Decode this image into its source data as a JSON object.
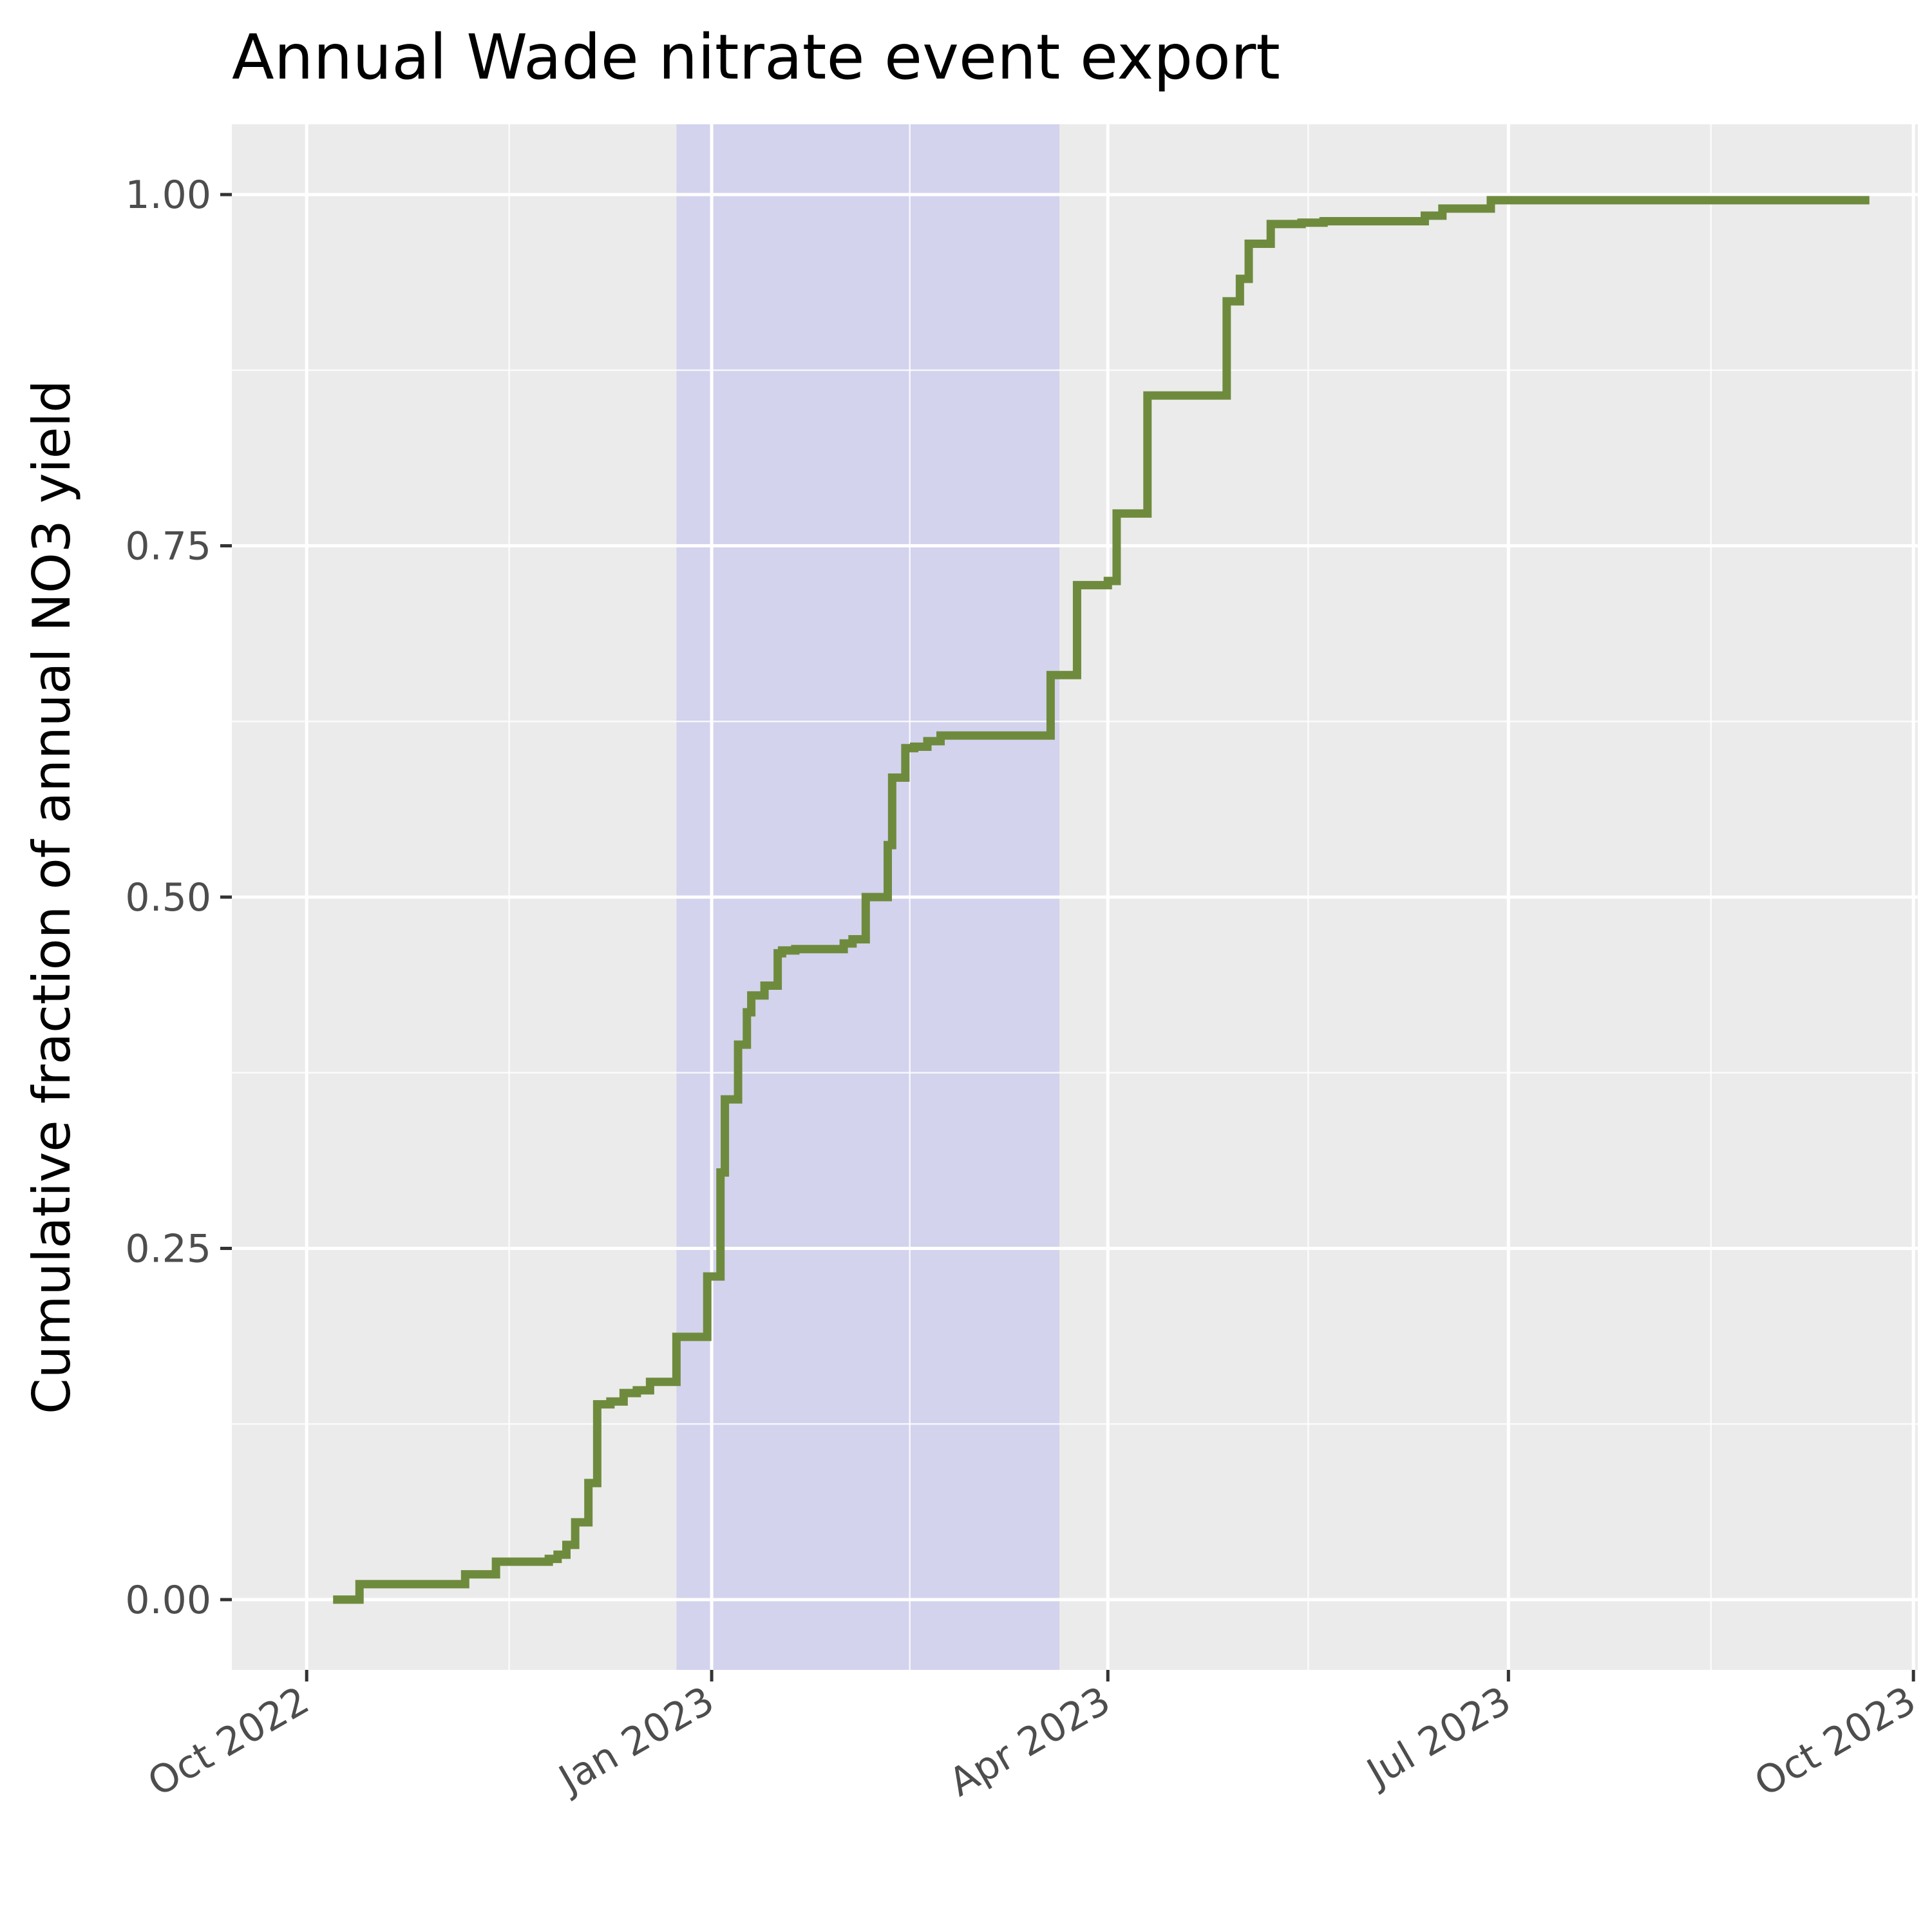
{
  "chart_data": {
    "type": "line",
    "title": "Annual Wade nitrate event export",
    "xlabel": "",
    "ylabel": "Cumulative fraction of annual NO3 yield",
    "x_axis": {
      "type": "date",
      "range": [
        "2022-09-14",
        "2023-10-02"
      ],
      "ticks": [
        "2022-10-01",
        "2023-01-01",
        "2023-04-01",
        "2023-07-01",
        "2023-10-01"
      ],
      "tick_labels": [
        "Oct 2022",
        "Jan 2023",
        "Apr 2023",
        "Jul 2023",
        "Oct 2023"
      ]
    },
    "y_axis": {
      "range": [
        -0.05,
        1.05
      ],
      "ticks": [
        0.0,
        0.25,
        0.5,
        0.75,
        1.0
      ],
      "tick_labels": [
        "0.00",
        "0.25",
        "0.50",
        "0.75",
        "1.00"
      ]
    },
    "grid": true,
    "shaded_interval": {
      "start": "2022-12-24",
      "end": "2023-03-21",
      "color": "#cfcfef"
    },
    "line_color": "#6e8b3d",
    "series": [
      {
        "step": true,
        "x": [
          "2022-10-07",
          "2022-10-13",
          "2022-11-06",
          "2022-11-13",
          "2022-11-25",
          "2022-11-27",
          "2022-11-29",
          "2022-12-01",
          "2022-12-04",
          "2022-12-06",
          "2022-12-09",
          "2022-12-12",
          "2022-12-15",
          "2022-12-18",
          "2022-12-24",
          "2022-12-31",
          "2023-01-03",
          "2023-01-04",
          "2023-01-07",
          "2023-01-09",
          "2023-01-10",
          "2023-01-13",
          "2023-01-16",
          "2023-01-17",
          "2023-01-20",
          "2023-01-24",
          "2023-01-31",
          "2023-02-02",
          "2023-02-05",
          "2023-02-10",
          "2023-02-11",
          "2023-02-14",
          "2023-02-16",
          "2023-02-19",
          "2023-02-22",
          "2023-02-25",
          "2023-03-19",
          "2023-03-25",
          "2023-04-01",
          "2023-04-03",
          "2023-04-10",
          "2023-04-28",
          "2023-05-01",
          "2023-05-03",
          "2023-05-08",
          "2023-05-15",
          "2023-05-20",
          "2023-06-12",
          "2023-06-16",
          "2023-06-19",
          "2023-06-27",
          "2023-09-21"
        ],
        "y": [
          0.0,
          0.011,
          0.018,
          0.027,
          0.029,
          0.032,
          0.039,
          0.055,
          0.083,
          0.139,
          0.141,
          0.147,
          0.149,
          0.155,
          0.187,
          0.23,
          0.304,
          0.356,
          0.395,
          0.418,
          0.43,
          0.437,
          0.46,
          0.462,
          0.463,
          0.463,
          0.467,
          0.47,
          0.5,
          0.537,
          0.585,
          0.606,
          0.607,
          0.611,
          0.615,
          0.615,
          0.658,
          0.722,
          0.725,
          0.773,
          0.857,
          0.924,
          0.94,
          0.965,
          0.979,
          0.98,
          0.981,
          0.985,
          0.99,
          0.99,
          0.996,
          0.996
        ]
      }
    ]
  }
}
